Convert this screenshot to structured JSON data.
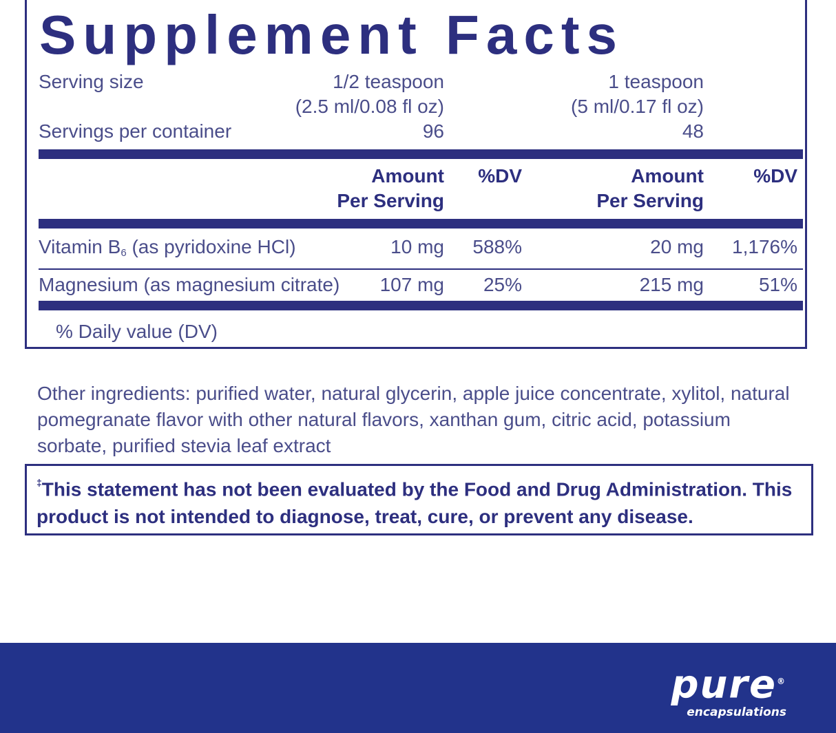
{
  "title": "Supplement Facts",
  "serving": {
    "size_label": "Serving size",
    "size_half": "1/2 teaspoon",
    "size_half_detail": "(2.5 ml/0.08 fl oz)",
    "size_full": "1 teaspoon",
    "size_full_detail": "(5 ml/0.17 fl oz)",
    "per_container_label": "Servings per container",
    "per_container_half": "96",
    "per_container_full": "48"
  },
  "columns": {
    "amount_line1": "Amount",
    "amount_line2": "Per Serving",
    "dv": "%DV"
  },
  "nutrients": [
    {
      "name_main": "Vitamin B",
      "name_sub": "6",
      "name_rest": " (as pyridoxine HCl)",
      "amount_half": "10 mg",
      "dv_half": "588%",
      "amount_full": "20 mg",
      "dv_full": "1,176%"
    },
    {
      "name_main": "Magnesium (as magnesium citrate)",
      "name_sub": "",
      "name_rest": "",
      "amount_half": "107 mg",
      "dv_half": "25%",
      "amount_full": "215 mg",
      "dv_full": "51%"
    }
  ],
  "dv_note": "% Daily value (DV)",
  "other_ingredients": "Other ingredients: purified water, natural glycerin, apple juice concentrate, xylitol, natural pomegranate flavor with other natural flavors, xanthan gum, citric acid, potassium sorbate, purified stevia leaf extract",
  "fda": {
    "mark": "‡",
    "statement": "This statement has not been evaluated by the Food and Drug Administration. This product is not intended to diagnose, treat, cure, or prevent any disease."
  },
  "brand": {
    "name": "pure",
    "registered": "®",
    "tagline": "encapsulations"
  },
  "colors": {
    "navy": "#2d2f7f",
    "footer": "#22338b",
    "text": "#4a4d8a"
  }
}
